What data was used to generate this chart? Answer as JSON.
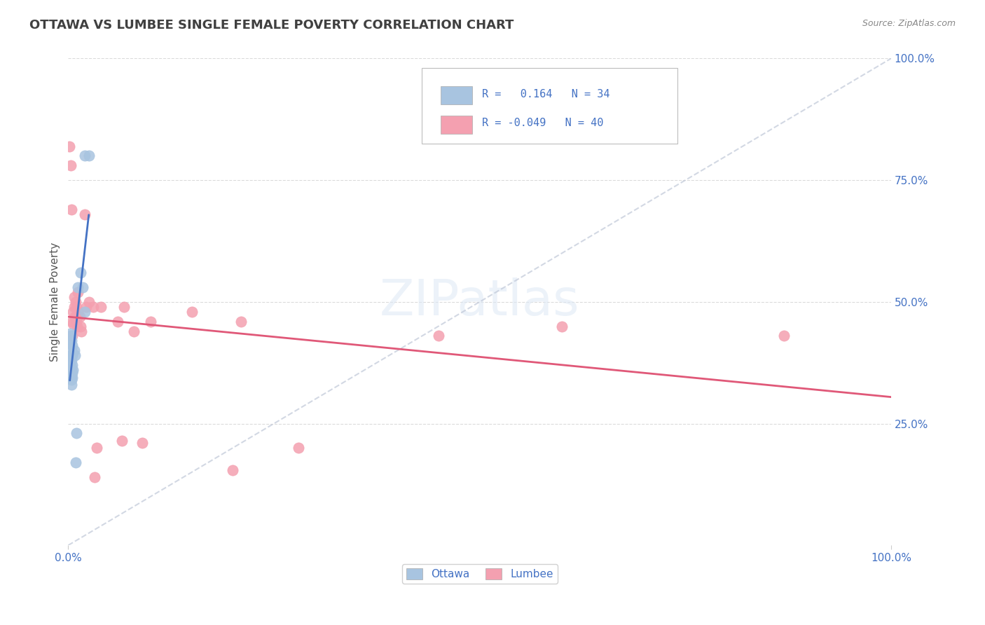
{
  "title": "OTTAWA VS LUMBEE SINGLE FEMALE POVERTY CORRELATION CHART",
  "source": "Source: ZipAtlas.com",
  "ylabel": "Single Female Poverty",
  "xlim": [
    0.0,
    1.0
  ],
  "ylim": [
    0.0,
    1.0
  ],
  "xtick_labels": [
    "0.0%",
    "100.0%"
  ],
  "ytick_labels": [
    "25.0%",
    "50.0%",
    "75.0%",
    "100.0%"
  ],
  "ytick_positions": [
    0.25,
    0.5,
    0.75,
    1.0
  ],
  "ottawa_R": 0.164,
  "ottawa_N": 34,
  "lumbee_R": -0.049,
  "lumbee_N": 40,
  "ottawa_color": "#a8c4e0",
  "lumbee_color": "#f4a0b0",
  "ottawa_line_color": "#4472c4",
  "lumbee_line_color": "#e05878",
  "watermark": "ZIPatlas",
  "background_color": "#ffffff",
  "grid_color": "#d8d8d8",
  "title_color": "#404040",
  "axis_label_color": "#4472c4",
  "ottawa_points": [
    [
      0.002,
      0.435
    ],
    [
      0.002,
      0.415
    ],
    [
      0.002,
      0.385
    ],
    [
      0.002,
      0.37
    ],
    [
      0.002,
      0.355
    ],
    [
      0.003,
      0.43
    ],
    [
      0.003,
      0.39
    ],
    [
      0.003,
      0.375
    ],
    [
      0.003,
      0.365
    ],
    [
      0.003,
      0.355
    ],
    [
      0.003,
      0.345
    ],
    [
      0.004,
      0.42
    ],
    [
      0.004,
      0.4
    ],
    [
      0.004,
      0.38
    ],
    [
      0.004,
      0.365
    ],
    [
      0.004,
      0.35
    ],
    [
      0.004,
      0.34
    ],
    [
      0.004,
      0.33
    ],
    [
      0.005,
      0.41
    ],
    [
      0.005,
      0.39
    ],
    [
      0.005,
      0.37
    ],
    [
      0.005,
      0.355
    ],
    [
      0.005,
      0.345
    ],
    [
      0.006,
      0.36
    ],
    [
      0.007,
      0.4
    ],
    [
      0.008,
      0.39
    ],
    [
      0.009,
      0.17
    ],
    [
      0.01,
      0.23
    ],
    [
      0.012,
      0.53
    ],
    [
      0.015,
      0.56
    ],
    [
      0.018,
      0.53
    ],
    [
      0.02,
      0.8
    ],
    [
      0.02,
      0.48
    ],
    [
      0.025,
      0.8
    ]
  ],
  "lumbee_points": [
    [
      0.001,
      0.82
    ],
    [
      0.003,
      0.78
    ],
    [
      0.004,
      0.69
    ],
    [
      0.005,
      0.46
    ],
    [
      0.005,
      0.43
    ],
    [
      0.006,
      0.48
    ],
    [
      0.006,
      0.455
    ],
    [
      0.007,
      0.51
    ],
    [
      0.007,
      0.49
    ],
    [
      0.008,
      0.47
    ],
    [
      0.009,
      0.5
    ],
    [
      0.01,
      0.49
    ],
    [
      0.01,
      0.46
    ],
    [
      0.011,
      0.47
    ],
    [
      0.011,
      0.45
    ],
    [
      0.012,
      0.52
    ],
    [
      0.012,
      0.48
    ],
    [
      0.014,
      0.47
    ],
    [
      0.015,
      0.45
    ],
    [
      0.016,
      0.44
    ],
    [
      0.02,
      0.68
    ],
    [
      0.022,
      0.49
    ],
    [
      0.025,
      0.5
    ],
    [
      0.03,
      0.49
    ],
    [
      0.032,
      0.14
    ],
    [
      0.035,
      0.2
    ],
    [
      0.04,
      0.49
    ],
    [
      0.06,
      0.46
    ],
    [
      0.065,
      0.215
    ],
    [
      0.068,
      0.49
    ],
    [
      0.08,
      0.44
    ],
    [
      0.09,
      0.21
    ],
    [
      0.1,
      0.46
    ],
    [
      0.15,
      0.48
    ],
    [
      0.2,
      0.155
    ],
    [
      0.21,
      0.46
    ],
    [
      0.28,
      0.2
    ],
    [
      0.45,
      0.43
    ],
    [
      0.6,
      0.45
    ],
    [
      0.87,
      0.43
    ]
  ]
}
